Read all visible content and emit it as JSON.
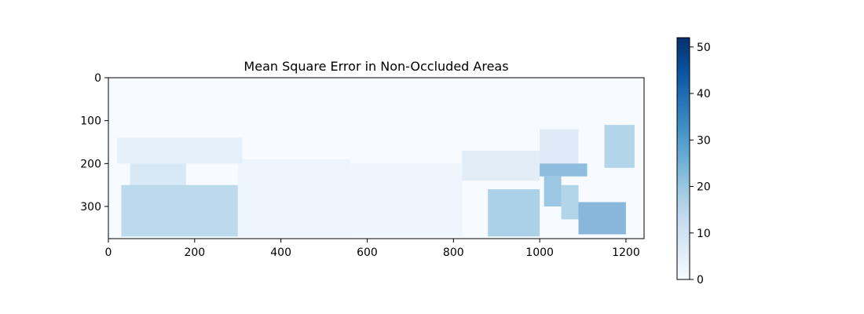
{
  "chart_data": {
    "type": "heatmap",
    "title": "Mean Square Error in Non-Occluded Areas",
    "xlabel": "",
    "ylabel": "",
    "x_range": [
      0,
      1242
    ],
    "y_range": [
      0,
      375
    ],
    "y_inverted": true,
    "x_ticks": [
      0,
      200,
      400,
      600,
      800,
      1000,
      1200
    ],
    "y_ticks": [
      0,
      100,
      200,
      300
    ],
    "colormap": "Blues",
    "colorbar": {
      "range": [
        0,
        52
      ],
      "ticks": [
        0,
        10,
        20,
        30,
        40,
        50
      ]
    },
    "colors": {
      "low": "#f7fbff",
      "mid": "#6baed6",
      "high": "#08306b"
    },
    "regions": [
      {
        "x": [
          20,
          310
        ],
        "y": [
          140,
          200
        ],
        "value": 8
      },
      {
        "x": [
          30,
          300
        ],
        "y": [
          250,
          370
        ],
        "value": 22
      },
      {
        "x": [
          50,
          180
        ],
        "y": [
          200,
          260
        ],
        "value": 14
      },
      {
        "x": [
          300,
          560
        ],
        "y": [
          190,
          370
        ],
        "value": 5
      },
      {
        "x": [
          560,
          820
        ],
        "y": [
          200,
          370
        ],
        "value": 4
      },
      {
        "x": [
          820,
          1000
        ],
        "y": [
          170,
          240
        ],
        "value": 10
      },
      {
        "x": [
          880,
          1000
        ],
        "y": [
          260,
          370
        ],
        "value": 26
      },
      {
        "x": [
          1000,
          1090
        ],
        "y": [
          120,
          200
        ],
        "value": 12
      },
      {
        "x": [
          1000,
          1110
        ],
        "y": [
          200,
          230
        ],
        "value": 34
      },
      {
        "x": [
          1010,
          1050
        ],
        "y": [
          230,
          300
        ],
        "value": 30
      },
      {
        "x": [
          1050,
          1090
        ],
        "y": [
          250,
          330
        ],
        "value": 24
      },
      {
        "x": [
          1090,
          1200
        ],
        "y": [
          290,
          365
        ],
        "value": 36
      },
      {
        "x": [
          1150,
          1220
        ],
        "y": [
          110,
          210
        ],
        "value": 24
      }
    ]
  }
}
